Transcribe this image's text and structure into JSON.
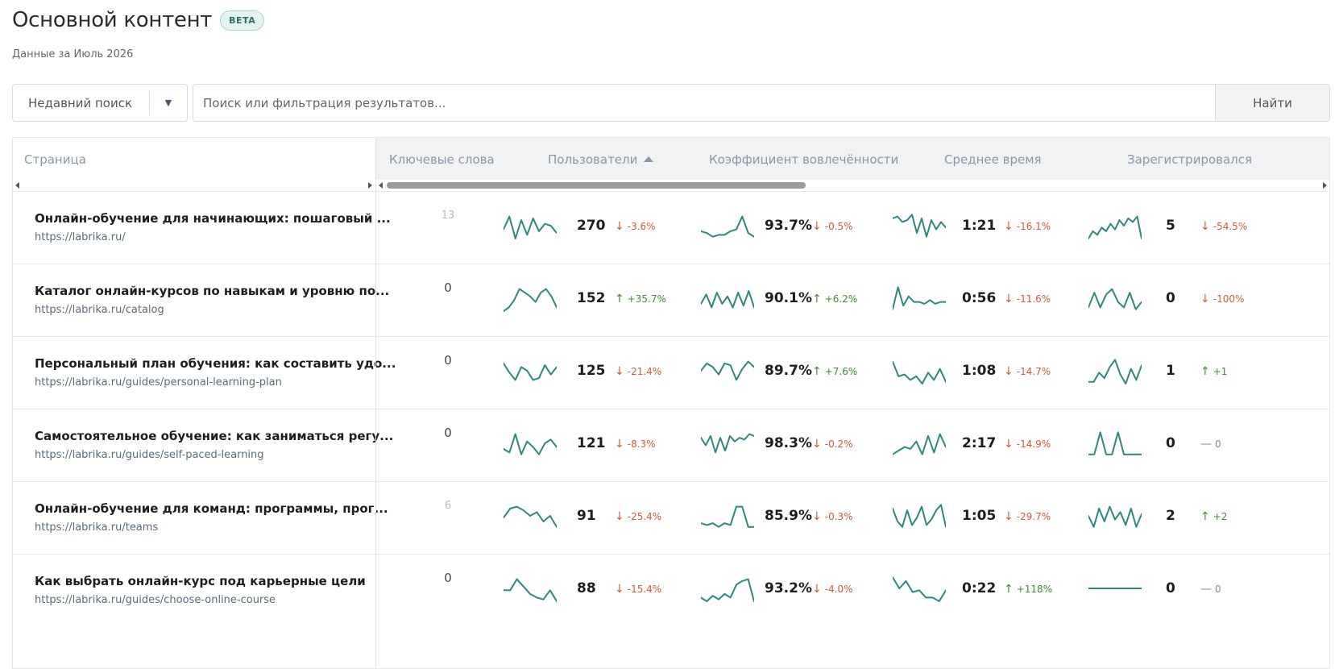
{
  "header": {
    "title": "Основной контент",
    "badge": "BETA",
    "subtitle": "Данные за Июль 2026"
  },
  "search": {
    "recent_label": "Недавний поиск",
    "placeholder": "Поиск или фильтрация результатов...",
    "button": "Найти"
  },
  "table": {
    "columns": {
      "page": "Страница",
      "keywords": "Ключевые слова",
      "users": "Пользователи",
      "engagement": "Коэффициент вовлечённости",
      "avg_time": "Среднее время",
      "registered": "Зарегистрировался"
    },
    "rows": [
      {
        "title": "Онлайн-обучение для начинающих: пошаговый ...",
        "url": "https://labrika.ru/",
        "keywords": "13",
        "keywords_dim": true,
        "users": "270",
        "users_delta": "-3.6%",
        "users_dir": "down",
        "engagement": "93.7%",
        "engagement_delta": "-0.5%",
        "engagement_dir": "down",
        "time": "1:21",
        "time_delta": "-16.1%",
        "time_dir": "down",
        "reg": "5",
        "reg_delta": "-54.5%",
        "reg_dir": "down",
        "spark_users": [
          9,
          2,
          14,
          4,
          12,
          3,
          10,
          6,
          7,
          11
        ],
        "spark_eng": [
          10,
          11,
          13,
          12,
          12,
          10,
          9,
          2,
          11,
          13
        ],
        "spark_time": [
          3,
          2,
          5,
          4,
          1,
          11,
          3,
          13,
          4,
          9,
          5,
          8
        ],
        "spark_reg": [
          14,
          10,
          12,
          8,
          10,
          6,
          9,
          4,
          7,
          3,
          5,
          2,
          14
        ]
      },
      {
        "title": "Каталог онлайн-курсов по навыкам и уровню по...",
        "url": "https://labrika.ru/catalog",
        "keywords": "0",
        "keywords_dim": false,
        "users": "152",
        "users_delta": "+35.7%",
        "users_dir": "up",
        "engagement": "90.1%",
        "engagement_delta": "+6.2%",
        "engagement_dir": "up",
        "time": "0:56",
        "time_delta": "-11.6%",
        "time_dir": "down",
        "reg": "0",
        "reg_delta": "-100%",
        "reg_dir": "down",
        "spark_users": [
          14,
          12,
          8,
          2,
          4,
          6,
          9,
          4,
          2,
          6,
          12
        ],
        "spark_eng": [
          10,
          5,
          12,
          4,
          10,
          6,
          12,
          4,
          11,
          3,
          12
        ],
        "spark_time": [
          13,
          1,
          11,
          6,
          9,
          9,
          10,
          8,
          10,
          9,
          9
        ],
        "spark_reg": [
          12,
          4,
          12,
          5,
          2,
          9,
          12,
          4,
          13,
          9
        ]
      },
      {
        "title": "Персональный план обучения: как составить удо...",
        "url": "https://labrika.ru/guides/personal-learning-plan",
        "keywords": "0",
        "keywords_dim": false,
        "users": "125",
        "users_delta": "-21.4%",
        "users_dir": "down",
        "engagement": "89.7%",
        "engagement_delta": "+7.6%",
        "engagement_dir": "up",
        "time": "1:08",
        "time_delta": "-14.7%",
        "time_dir": "down",
        "reg": "1",
        "reg_delta": "+1",
        "reg_dir": "up",
        "spark_users": [
          3,
          8,
          12,
          5,
          7,
          12,
          11,
          4,
          9,
          5
        ],
        "spark_eng": [
          7,
          3,
          5,
          9,
          3,
          4,
          12,
          6,
          2,
          5
        ],
        "spark_time": [
          2,
          10,
          9,
          12,
          10,
          14,
          8,
          12,
          6,
          13
        ],
        "spark_reg": [
          13,
          13,
          8,
          11,
          5,
          1,
          9,
          14,
          6,
          12,
          4
        ]
      },
      {
        "title": "Самостоятельное обучение: как заниматься регу...",
        "url": "https://labrika.ru/guides/self-paced-learning",
        "keywords": "0",
        "keywords_dim": false,
        "users": "121",
        "users_delta": "-8.3%",
        "users_dir": "down",
        "engagement": "98.3%",
        "engagement_delta": "-0.2%",
        "engagement_dir": "down",
        "time": "2:17",
        "time_delta": "-14.9%",
        "time_dir": "down",
        "reg": "0",
        "reg_delta": "0",
        "reg_dir": "flat",
        "spark_users": [
          10,
          12,
          2,
          13,
          6,
          9,
          13,
          7,
          5,
          9
        ],
        "spark_eng": [
          4,
          8,
          3,
          12,
          4,
          11,
          3,
          6,
          4,
          5,
          2,
          3
        ],
        "spark_time": [
          13,
          11,
          9,
          10,
          6,
          13,
          3,
          12,
          2,
          9
        ],
        "spark_reg": [
          13,
          13,
          1,
          13,
          13,
          1,
          13,
          13,
          13,
          13
        ]
      },
      {
        "title": "Онлайн-обучение для команд: программы, прог...",
        "url": "https://labrika.ru/teams",
        "keywords": "6",
        "keywords_dim": true,
        "users": "91",
        "users_delta": "-25.4%",
        "users_dir": "down",
        "engagement": "85.9%",
        "engagement_delta": "-0.3%",
        "engagement_dir": "down",
        "time": "1:05",
        "time_delta": "-29.7%",
        "time_dir": "down",
        "reg": "2",
        "reg_delta": "+2",
        "reg_dir": "up",
        "spark_users": [
          8,
          3,
          2,
          4,
          7,
          5,
          10,
          7,
          13
        ],
        "spark_eng": [
          11,
          12,
          11,
          13,
          11,
          12,
          2,
          2,
          13,
          13
        ],
        "spark_time": [
          3,
          10,
          13,
          4,
          12,
          8,
          2,
          12,
          9,
          4,
          1,
          13
        ],
        "spark_reg": [
          7,
          13,
          3,
          10,
          2,
          9,
          5,
          12,
          3,
          13,
          6
        ]
      },
      {
        "title": "Как выбрать онлайн-курс под карьерные цели",
        "url": "https://labrika.ru/guides/choose-online-course",
        "keywords": "0",
        "keywords_dim": false,
        "users": "88",
        "users_delta": "-15.4%",
        "users_dir": "down",
        "engagement": "93.2%",
        "engagement_delta": "-4.0%",
        "engagement_dir": "down",
        "time": "0:22",
        "time_delta": "+118%",
        "time_dir": "up",
        "reg": "0",
        "reg_delta": "0",
        "reg_dir": "flat",
        "spark_users": [
          8,
          8,
          2,
          6,
          10,
          12,
          13,
          8,
          14
        ],
        "spark_eng": [
          12,
          14,
          11,
          13,
          10,
          12,
          5,
          3,
          2,
          14
        ],
        "spark_time": [
          1,
          7,
          3,
          9,
          8,
          12,
          12,
          14,
          8
        ],
        "spark_reg": [
          7,
          7,
          7,
          7,
          7,
          7,
          7,
          7,
          7
        ]
      }
    ]
  },
  "colors": {
    "spark": "#2f8780",
    "down": "#d35a3a",
    "up": "#3f8d2e",
    "badge_bg": "#e3f3f0"
  }
}
